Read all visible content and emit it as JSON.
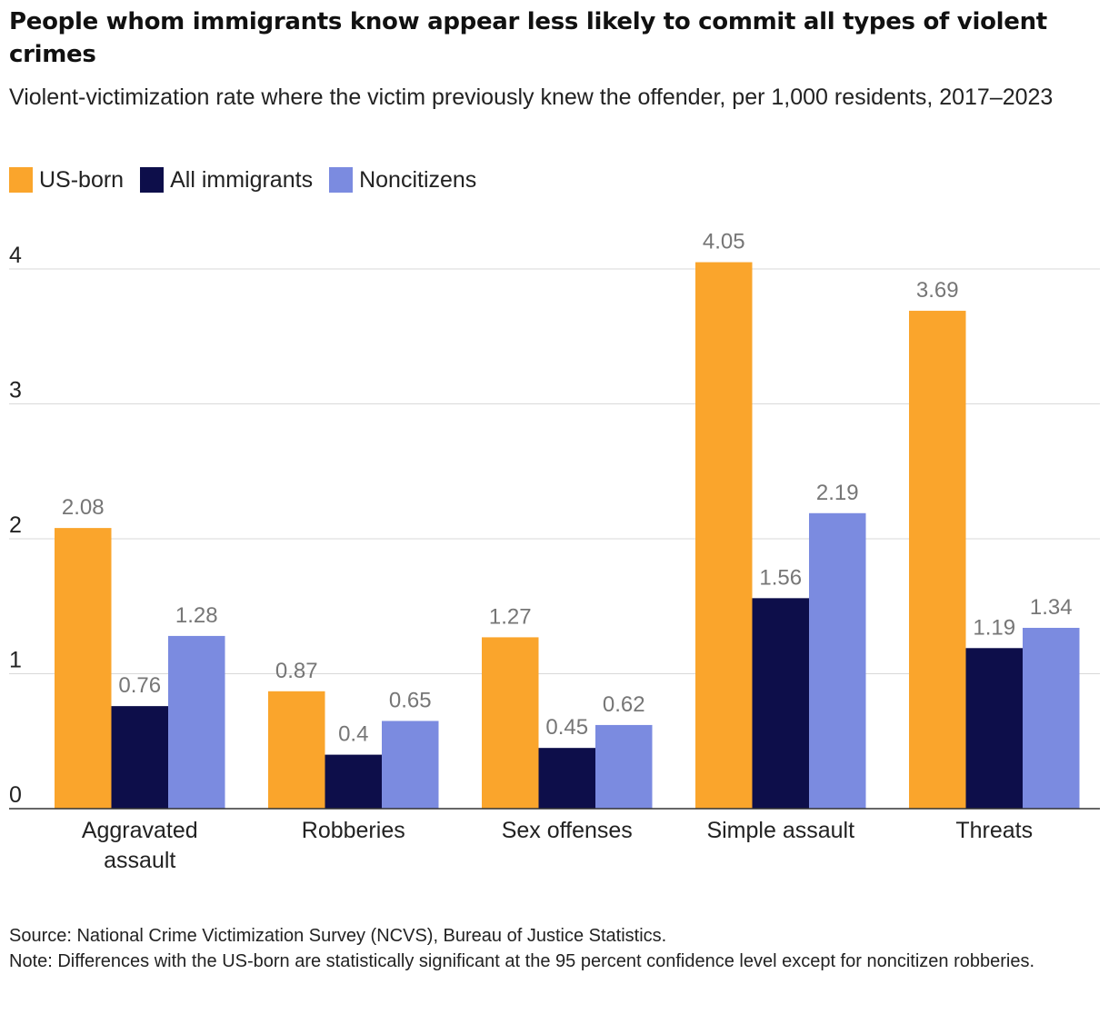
{
  "chart_data": {
    "type": "bar",
    "title": "People whom immigrants know appear less likely to commit all types of violent crimes",
    "subtitle": "Violent-victimization rate where the victim previously knew the offender, per 1,000 residents, 2017–2023",
    "categories": [
      "Aggravated assault",
      "Robberies",
      "Sex offenses",
      "Simple assault",
      "Threats"
    ],
    "series": [
      {
        "name": "US-born",
        "color": "#FAA52C",
        "values": [
          2.08,
          0.87,
          1.27,
          4.05,
          3.69
        ],
        "labels": [
          "2.08",
          "0.87",
          "1.27",
          "4.05",
          "3.69"
        ]
      },
      {
        "name": "All immigrants",
        "color": "#0D0E4A",
        "values": [
          0.76,
          0.4,
          0.45,
          1.56,
          1.19
        ],
        "labels": [
          "0.76",
          "0.4",
          "0.45",
          "1.56",
          "1.19"
        ]
      },
      {
        "name": "Noncitizens",
        "color": "#7B8BE0",
        "values": [
          1.28,
          0.65,
          0.62,
          2.19,
          1.34
        ],
        "labels": [
          "1.28",
          "0.65",
          "0.62",
          "2.19",
          "1.34"
        ]
      }
    ],
    "ylim": [
      0,
      4.3
    ],
    "yticks": [
      0,
      1,
      2,
      3,
      4
    ],
    "ytick_labels": [
      "0",
      "1",
      "2",
      "3",
      "4"
    ],
    "xlabel": "",
    "ylabel": "",
    "grid": true,
    "legend": "top-left"
  },
  "footer": {
    "source": "Source: National Crime Victimization Survey (NCVS), Bureau of Justice Statistics.",
    "note": "Note: Differences with the US-born are statistically significant at the 95 percent confidence level except for noncitizen robberies."
  }
}
